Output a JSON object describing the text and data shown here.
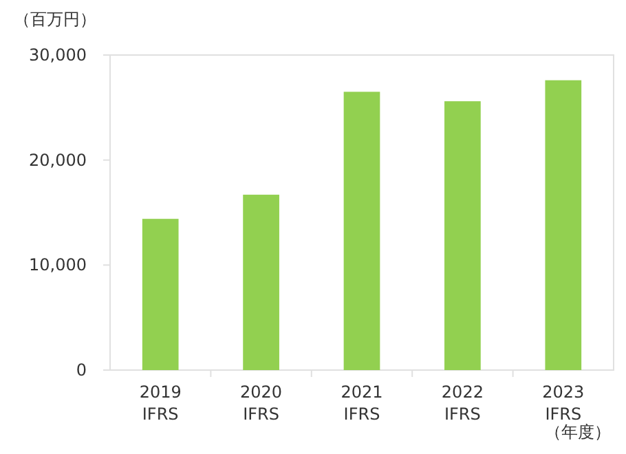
{
  "chart_data": {
    "type": "bar",
    "ylabel": "（百万円）",
    "xlabel": "（年度）",
    "categories": [
      "2019\nIFRS",
      "2020\nIFRS",
      "2021\nIFRS",
      "2022\nIFRS",
      "2023\nIFRS"
    ],
    "values": [
      14400,
      16700,
      26500,
      25600,
      27600
    ],
    "color": "#92d050",
    "ylim": [
      0,
      30000
    ],
    "yticks": [
      {
        "value": 0,
        "label": "0"
      },
      {
        "value": 10000,
        "label": "10,000"
      },
      {
        "value": 20000,
        "label": "20,000"
      },
      {
        "value": 30000,
        "label": "30,000"
      }
    ],
    "grid": false
  }
}
